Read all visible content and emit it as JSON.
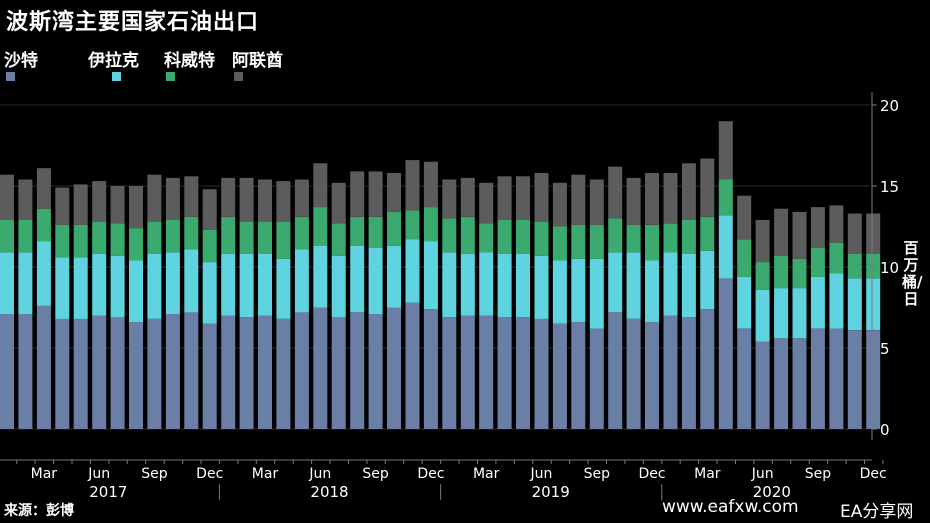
{
  "title": "波斯湾主要国家石油出口",
  "source": "来源：彭博",
  "watermark": {
    "site": "www.eafxw.com",
    "brand": "EA分享网"
  },
  "colors": {
    "saudi": "#6b7fa6",
    "iraq": "#5fd3e0",
    "kuwait": "#3aaa6e",
    "uae": "#5c5c5c",
    "axis": "#7a7a7a",
    "grid": "#2a2a2a"
  },
  "chart_data": {
    "type": "bar",
    "stacked": true,
    "ylabel": "百万桶/日",
    "yticks": [
      0,
      5,
      10,
      15,
      20
    ],
    "ylim": [
      -1.5,
      20.8
    ],
    "x_month_labels": [
      "Mar",
      "Jun",
      "Sep",
      "Dec",
      "Mar",
      "Jun",
      "Sep",
      "Dec",
      "Mar",
      "Jun",
      "Sep",
      "Dec",
      "Mar",
      "Jun",
      "Sep",
      "Dec"
    ],
    "x_year_labels": [
      "2017",
      "2018",
      "2019",
      "2020"
    ],
    "legend_position": "top-left",
    "grid": true,
    "categories": [
      "2017-01",
      "2017-02",
      "2017-03",
      "2017-04",
      "2017-05",
      "2017-06",
      "2017-07",
      "2017-08",
      "2017-09",
      "2017-10",
      "2017-11",
      "2017-12",
      "2018-01",
      "2018-02",
      "2018-03",
      "2018-04",
      "2018-05",
      "2018-06",
      "2018-07",
      "2018-08",
      "2018-09",
      "2018-10",
      "2018-11",
      "2018-12",
      "2019-01",
      "2019-02",
      "2019-03",
      "2019-04",
      "2019-05",
      "2019-06",
      "2019-07",
      "2019-08",
      "2019-09",
      "2019-10",
      "2019-11",
      "2019-12",
      "2020-01",
      "2020-02",
      "2020-03",
      "2020-04",
      "2020-05",
      "2020-06",
      "2020-07",
      "2020-08",
      "2020-09",
      "2020-10",
      "2020-11",
      "2020-12"
    ],
    "series": [
      {
        "name": "沙特",
        "color_key": "saudi",
        "values": [
          7.1,
          7.1,
          7.6,
          6.8,
          6.8,
          7.0,
          6.9,
          6.6,
          6.8,
          7.1,
          7.2,
          6.5,
          7.0,
          6.9,
          7.0,
          6.8,
          7.2,
          7.5,
          6.9,
          7.2,
          7.1,
          7.5,
          7.8,
          7.4,
          6.9,
          7.0,
          7.0,
          6.9,
          6.9,
          6.8,
          6.5,
          6.6,
          6.2,
          7.2,
          6.8,
          6.6,
          7.0,
          6.9,
          7.4,
          9.3,
          6.2,
          5.4,
          5.6,
          5.6,
          6.2,
          6.2,
          6.1,
          6.1
        ]
      },
      {
        "name": "伊拉克",
        "color_key": "iraq",
        "values": [
          3.8,
          3.8,
          4.0,
          3.8,
          3.8,
          3.8,
          3.8,
          3.8,
          4.0,
          3.8,
          3.9,
          3.8,
          3.8,
          3.9,
          3.8,
          3.7,
          3.9,
          3.8,
          3.8,
          4.1,
          4.1,
          3.8,
          3.9,
          4.2,
          4.0,
          3.8,
          3.9,
          3.9,
          3.9,
          3.9,
          3.9,
          3.9,
          4.3,
          3.7,
          4.1,
          3.8,
          3.9,
          3.9,
          3.6,
          3.9,
          3.2,
          3.2,
          3.1,
          3.1,
          3.2,
          3.4,
          3.2,
          3.2
        ]
      },
      {
        "name": "科威特",
        "color_key": "kuwait",
        "values": [
          2.0,
          2.0,
          2.0,
          2.0,
          2.0,
          2.0,
          2.0,
          2.0,
          2.0,
          2.0,
          2.0,
          2.0,
          2.3,
          2.0,
          2.0,
          2.3,
          2.0,
          2.4,
          2.0,
          1.8,
          1.9,
          2.1,
          1.8,
          2.1,
          2.1,
          2.3,
          1.8,
          2.1,
          2.1,
          2.1,
          2.1,
          2.1,
          2.1,
          2.1,
          1.7,
          2.2,
          1.8,
          2.1,
          2.1,
          2.2,
          2.3,
          1.7,
          2.0,
          1.8,
          1.8,
          1.9,
          1.5,
          1.5
        ]
      },
      {
        "name": "阿联酋",
        "color_key": "uae",
        "values": [
          2.8,
          2.5,
          2.5,
          2.3,
          2.5,
          2.5,
          2.3,
          2.6,
          2.9,
          2.6,
          2.5,
          2.5,
          2.4,
          2.7,
          2.6,
          2.5,
          2.3,
          2.7,
          2.5,
          2.8,
          2.8,
          2.4,
          3.1,
          2.8,
          2.4,
          2.4,
          2.5,
          2.7,
          2.7,
          3.0,
          2.7,
          3.1,
          2.8,
          3.2,
          2.9,
          3.2,
          3.1,
          3.5,
          3.6,
          3.6,
          2.7,
          2.6,
          2.9,
          2.9,
          2.5,
          2.3,
          2.5,
          2.5
        ]
      }
    ]
  }
}
